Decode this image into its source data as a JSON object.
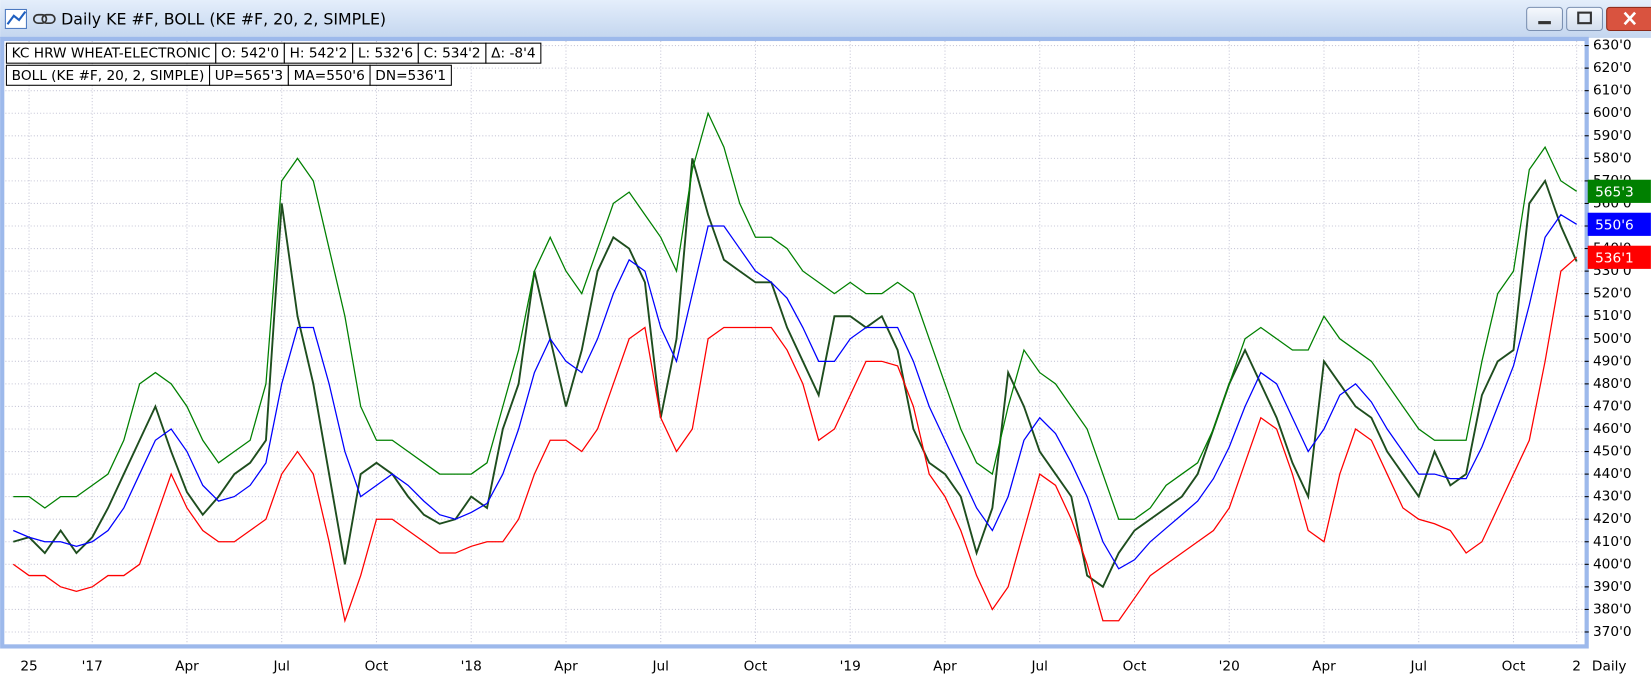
{
  "window_title": "Daily KE #F, BOLL (KE #F, 20, 2, SIMPLE)",
  "chart_data": {
    "type": "line",
    "info": [
      [
        "KC HRW WHEAT-ELECTRONIC",
        "O: 542'0",
        "H: 542'2",
        "L: 532'6",
        "C: 534'2",
        "Δ: -8'4"
      ],
      [
        "BOLL (KE #F, 20, 2, SIMPLE)",
        "UP=565'3",
        "MA=550'6",
        "DN=536'1"
      ]
    ],
    "period_label": "Daily",
    "categories": [
      null,
      "25",
      null,
      null,
      null,
      "'17",
      null,
      null,
      null,
      null,
      null,
      "Apr",
      null,
      null,
      null,
      null,
      null,
      "Jul",
      null,
      null,
      null,
      null,
      null,
      "Oct",
      null,
      null,
      null,
      null,
      null,
      "'18",
      null,
      null,
      null,
      null,
      null,
      "Apr",
      null,
      null,
      null,
      null,
      null,
      "Jul",
      null,
      null,
      null,
      null,
      null,
      "Oct",
      null,
      null,
      null,
      null,
      null,
      "'19",
      null,
      null,
      null,
      null,
      null,
      "Apr",
      null,
      null,
      null,
      null,
      null,
      "Jul",
      null,
      null,
      null,
      null,
      null,
      "Oct",
      null,
      null,
      null,
      null,
      null,
      "'20",
      null,
      null,
      null,
      null,
      null,
      "Apr",
      null,
      null,
      null,
      null,
      null,
      "Jul",
      null,
      null,
      null,
      null,
      null,
      "Oct",
      null,
      null,
      null,
      "2"
    ],
    "series": [
      {
        "color": "#1e4d1e",
        "values": [
          410,
          412,
          405,
          415,
          405,
          412,
          425,
          440,
          455,
          470,
          450,
          432,
          422,
          430,
          440,
          445,
          455,
          560,
          510,
          480,
          440,
          400,
          440,
          445,
          440,
          430,
          422,
          418,
          420,
          430,
          425,
          460,
          480,
          530,
          500,
          470,
          495,
          530,
          545,
          540,
          525,
          465,
          500,
          580,
          555,
          535,
          530,
          525,
          525,
          505,
          490,
          475,
          510,
          510,
          505,
          510,
          495,
          460,
          445,
          440,
          430,
          405,
          425,
          485,
          470,
          450,
          440,
          430,
          395,
          390,
          405,
          415,
          420,
          425,
          430,
          440,
          460,
          480,
          495,
          480,
          465,
          445,
          430,
          490,
          480,
          470,
          465,
          450,
          440,
          430,
          450,
          435,
          440,
          475,
          490,
          495,
          560,
          570,
          550,
          534.25
        ]
      },
      {
        "color": "#008000",
        "last_label": "565'3",
        "values": [
          430,
          430,
          425,
          430,
          430,
          435,
          440,
          455,
          480,
          485,
          480,
          470,
          455,
          445,
          450,
          455,
          480,
          570,
          580,
          570,
          540,
          510,
          470,
          455,
          455,
          450,
          445,
          440,
          440,
          440,
          445,
          470,
          495,
          530,
          545,
          530,
          520,
          540,
          560,
          565,
          555,
          545,
          530,
          575,
          600,
          585,
          560,
          545,
          545,
          540,
          530,
          525,
          520,
          525,
          520,
          520,
          525,
          520,
          500,
          480,
          460,
          445,
          440,
          470,
          495,
          485,
          480,
          470,
          460,
          440,
          420,
          420,
          425,
          435,
          440,
          445,
          460,
          480,
          500,
          505,
          500,
          495,
          495,
          510,
          500,
          495,
          490,
          480,
          470,
          460,
          455,
          455,
          455,
          490,
          520,
          530,
          575,
          585,
          570,
          565.375
        ]
      },
      {
        "color": "#0000ff",
        "last_label": "550'6",
        "values": [
          415,
          412,
          410,
          410,
          408,
          410,
          415,
          425,
          440,
          455,
          460,
          450,
          435,
          428,
          430,
          435,
          445,
          480,
          505,
          505,
          480,
          450,
          430,
          435,
          440,
          435,
          428,
          422,
          420,
          423,
          427,
          440,
          460,
          485,
          500,
          490,
          485,
          500,
          520,
          535,
          530,
          505,
          490,
          520,
          550,
          550,
          540,
          530,
          525,
          518,
          505,
          490,
          490,
          500,
          505,
          505,
          505,
          490,
          470,
          455,
          440,
          425,
          415,
          430,
          455,
          465,
          458,
          445,
          430,
          410,
          398,
          402,
          410,
          416,
          422,
          428,
          438,
          452,
          470,
          485,
          480,
          465,
          450,
          460,
          475,
          480,
          472,
          460,
          450,
          440,
          440,
          438,
          438,
          452,
          470,
          488,
          515,
          545,
          555,
          550.75
        ]
      },
      {
        "color": "#ff0000",
        "last_label": "536'1",
        "values": [
          400,
          395,
          395,
          390,
          388,
          390,
          395,
          395,
          400,
          420,
          440,
          425,
          415,
          410,
          410,
          415,
          420,
          440,
          450,
          440,
          410,
          375,
          395,
          420,
          420,
          415,
          410,
          405,
          405,
          408,
          410,
          410,
          420,
          440,
          455,
          455,
          450,
          460,
          480,
          500,
          505,
          465,
          450,
          460,
          500,
          505,
          505,
          505,
          505,
          495,
          480,
          455,
          460,
          475,
          490,
          490,
          488,
          470,
          440,
          430,
          415,
          395,
          380,
          390,
          415,
          440,
          435,
          420,
          400,
          375,
          375,
          385,
          395,
          400,
          405,
          410,
          415,
          425,
          445,
          465,
          460,
          440,
          415,
          410,
          440,
          460,
          455,
          440,
          425,
          420,
          418,
          415,
          405,
          410,
          425,
          440,
          455,
          490,
          530,
          536.125
        ]
      }
    ],
    "ylim": [
      365,
      632
    ],
    "yticks": [
      {
        "value": 370,
        "label": "370'0"
      },
      {
        "value": 380,
        "label": "380'0"
      },
      {
        "value": 390,
        "label": "390'0"
      },
      {
        "value": 400,
        "label": "400'0"
      },
      {
        "value": 410,
        "label": "410'0"
      },
      {
        "value": 420,
        "label": "420'0"
      },
      {
        "value": 430,
        "label": "430'0"
      },
      {
        "value": 440,
        "label": "440'0"
      },
      {
        "value": 450,
        "label": "450'0"
      },
      {
        "value": 460,
        "label": "460'0"
      },
      {
        "value": 470,
        "label": "470'0"
      },
      {
        "value": 480,
        "label": "480'0"
      },
      {
        "value": 490,
        "label": "490'0"
      },
      {
        "value": 500,
        "label": "500'0"
      },
      {
        "value": 510,
        "label": "510'0"
      },
      {
        "value": 520,
        "label": "520'0"
      },
      {
        "value": 530,
        "label": "530'0"
      },
      {
        "value": 540,
        "label": "540'0"
      },
      {
        "value": 550,
        "label": "550'0"
      },
      {
        "value": 560,
        "label": "560'0"
      },
      {
        "value": 570,
        "label": "570'0"
      },
      {
        "value": 580,
        "label": "580'0"
      },
      {
        "value": 590,
        "label": "590'0"
      },
      {
        "value": 600,
        "label": "600'0"
      },
      {
        "value": 610,
        "label": "610'0"
      },
      {
        "value": 620,
        "label": "620'0"
      },
      {
        "value": 630,
        "label": "630'0"
      }
    ],
    "grid": true
  }
}
